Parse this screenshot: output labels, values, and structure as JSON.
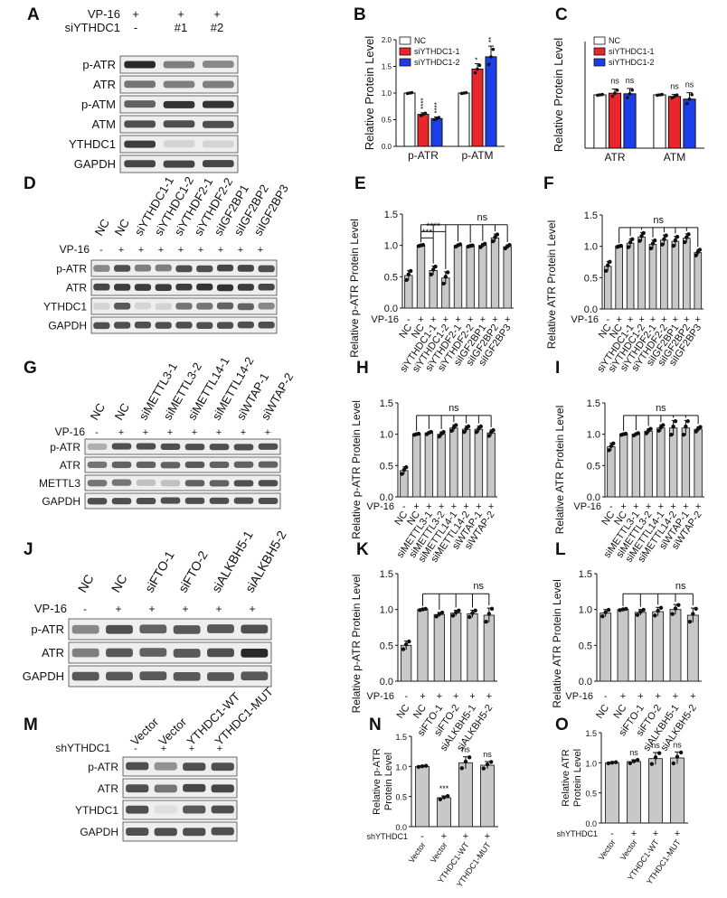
{
  "panels": {
    "A": {
      "letter": "A",
      "header_rows": [
        {
          "label": "VP-16",
          "cols": [
            "+",
            "+",
            "+"
          ]
        },
        {
          "label": "siYTHDC1",
          "cols": [
            "-",
            "#1",
            "#2"
          ]
        }
      ],
      "rows": [
        "p-ATR",
        "ATR",
        "p-ATM",
        "ATM",
        "YTHDC1",
        "GAPDH"
      ]
    },
    "B": {
      "letter": "B",
      "chart_data": {
        "type": "bar",
        "ylabel": "Relative Protein Level",
        "categories": [
          "p-ATR",
          "p-ATM"
        ],
        "ylim": [
          0,
          2.0
        ],
        "yticks": [
          "0.0",
          "0.5",
          "1.0",
          "1.5",
          "2.0"
        ],
        "legend": [
          "NC",
          "siYTHDC1-1",
          "siYTHDC1-2"
        ],
        "legend_position": "top-left",
        "series": [
          {
            "name": "NC",
            "color": "#ffffff",
            "values": [
              1.0,
              1.0
            ],
            "err": [
              0.01,
              0.01
            ],
            "sig": [
              "",
              ""
            ]
          },
          {
            "name": "siYTHDC1-1",
            "color": "#e8262c",
            "values": [
              0.6,
              1.45
            ],
            "err": [
              0.03,
              0.1
            ],
            "sig": [
              "****",
              "*"
            ]
          },
          {
            "name": "siYTHDC1-2",
            "color": "#1c3ee8",
            "values": [
              0.52,
              1.68
            ],
            "err": [
              0.03,
              0.2
            ],
            "sig": [
              "****",
              "**"
            ]
          }
        ]
      }
    },
    "C": {
      "letter": "C",
      "chart_data": {
        "type": "bar",
        "ylabel": "Relative Protein Level",
        "categories": [
          "ATR",
          "ATM"
        ],
        "ylim": [
          0,
          2.0
        ],
        "yticks": [],
        "legend": [
          "NC",
          "siYTHDC1-1",
          "siYTHDC1-2"
        ],
        "legend_position": "top-right",
        "series": [
          {
            "name": "NC",
            "color": "#ffffff",
            "values": [
              1.0,
              1.0
            ],
            "err": [
              0.01,
              0.01
            ],
            "sig": [
              "",
              ""
            ]
          },
          {
            "name": "siYTHDC1-1",
            "color": "#e8262c",
            "values": [
              1.03,
              0.97
            ],
            "err": [
              0.08,
              0.04
            ],
            "sig": [
              "ns",
              "ns"
            ]
          },
          {
            "name": "siYTHDC1-2",
            "color": "#1c3ee8",
            "values": [
              1.02,
              0.92
            ],
            "err": [
              0.1,
              0.12
            ],
            "sig": [
              "ns",
              "ns"
            ]
          }
        ]
      }
    },
    "D": {
      "letter": "D",
      "lanes": [
        "NC",
        "NC",
        "siYTHDC1-1",
        "siYTHDC1-2",
        "siYTHDF2-1",
        "siYTHDF2-2",
        "siIGF2BP1",
        "siIGF2BP2",
        "siIGF2BP3"
      ],
      "vp16_label": "VP-16",
      "vp16": [
        "-",
        "+",
        "+",
        "+",
        "+",
        "+",
        "+",
        "+",
        "+"
      ],
      "rows": [
        "p-ATR",
        "ATR",
        "YTHDC1",
        "GAPDH"
      ]
    },
    "E": {
      "letter": "E",
      "chart_data": {
        "type": "bar",
        "ylabel": "Relative p-ATR Protein Level",
        "ylim": [
          0,
          1.5
        ],
        "yticks": [
          "0.0",
          "0.5",
          "1.0",
          "1.5"
        ],
        "vp16_label": "VP-16",
        "vp16": [
          "-",
          "+",
          "+",
          "+",
          "+",
          "+",
          "+",
          "+",
          "+"
        ],
        "categories": [
          "NC",
          "NC",
          "siYTHDC1-1",
          "siYTHDC1-2",
          "siYTHDF2-1",
          "siYTHDF2-2",
          "siIGF2BP1",
          "siIGF2BP2",
          "siIGF2BP3"
        ],
        "values": [
          0.52,
          1.0,
          0.6,
          0.48,
          1.0,
          0.99,
          1.0,
          1.12,
          0.98
        ],
        "err": [
          0.08,
          0.01,
          0.07,
          0.1,
          0.02,
          0.01,
          0.03,
          0.06,
          0.03
        ],
        "annotations": [
          "***",
          "****",
          "ns"
        ]
      }
    },
    "F": {
      "letter": "F",
      "chart_data": {
        "type": "bar",
        "ylabel": "Relative ATR Protein Level",
        "ylim": [
          0,
          1.5
        ],
        "yticks": [
          "0.0",
          "0.5",
          "1.0",
          "1.5"
        ],
        "vp16_label": "VP-16",
        "vp16": [
          "-",
          "+",
          "+",
          "+",
          "+",
          "+",
          "+",
          "+",
          "+"
        ],
        "categories": [
          "NC",
          "NC",
          "siYTHDC1-1",
          "siYTHDC1-2",
          "siYTHDF2-1",
          "siYTHDF2-2",
          "siIGF2BP1",
          "siIGF2BP2",
          "siIGF2BP3"
        ],
        "values": [
          0.68,
          1.0,
          1.05,
          1.15,
          1.03,
          1.1,
          1.08,
          1.13,
          0.9
        ],
        "err": [
          0.08,
          0.01,
          0.07,
          0.07,
          0.07,
          0.08,
          0.08,
          0.07,
          0.05
        ],
        "annotations": [
          "ns"
        ]
      }
    },
    "G": {
      "letter": "G",
      "lanes": [
        "NC",
        "NC",
        "siMETTL3-1",
        "siMETTL3-2",
        "siMETTL14-1",
        "siMETTL14-2",
        "siWTAP-1",
        "siWTAP-2"
      ],
      "vp16_label": "VP-16",
      "vp16": [
        "-",
        "+",
        "+",
        "+",
        "+",
        "+",
        "+",
        "+"
      ],
      "rows": [
        "p-ATR",
        "ATR",
        "METTL3",
        "GAPDH"
      ]
    },
    "H": {
      "letter": "H",
      "chart_data": {
        "type": "bar",
        "ylabel": "Relative p-ATR Protein Level",
        "ylim": [
          0,
          1.5
        ],
        "yticks": [
          "0.0",
          "0.5",
          "1.0",
          "1.5"
        ],
        "vp16_label": "VP-16",
        "vp16": [
          "-",
          "+",
          "+",
          "+",
          "+",
          "+",
          "+",
          "+"
        ],
        "categories": [
          "NC",
          "NC",
          "siMETTL3-1",
          "siMETTL3-2",
          "siMETTL14-1",
          "siMETTL14-2",
          "siWTAP-1",
          "siWTAP-2"
        ],
        "values": [
          0.42,
          1.0,
          1.02,
          1.0,
          1.1,
          1.08,
          1.08,
          1.02
        ],
        "err": [
          0.06,
          0.01,
          0.02,
          0.04,
          0.05,
          0.05,
          0.05,
          0.05
        ],
        "annotations": [
          "ns"
        ]
      }
    },
    "I": {
      "letter": "I",
      "chart_data": {
        "type": "bar",
        "ylabel": "Relative ATR Protein Level",
        "ylim": [
          0,
          1.5
        ],
        "yticks": [
          "0.0",
          "0.5",
          "1.0",
          "1.5"
        ],
        "vp16_label": "VP-16",
        "vp16": [
          "-",
          "+",
          "+",
          "+",
          "+",
          "+",
          "+",
          "+"
        ],
        "categories": [
          "NC",
          "NC",
          "siMETTL3-1",
          "siMETTL3-2",
          "siMETTL14-1",
          "siMETTL14-2",
          "siWTAP-1",
          "siWTAP-2"
        ],
        "values": [
          0.8,
          1.0,
          1.0,
          1.05,
          1.1,
          1.1,
          1.1,
          1.08
        ],
        "err": [
          0.06,
          0.01,
          0.02,
          0.04,
          0.05,
          0.12,
          0.12,
          0.04
        ],
        "annotations": [
          "ns"
        ]
      }
    },
    "J": {
      "letter": "J",
      "lanes": [
        "NC",
        "NC",
        "siFTO-1",
        "siFTO-2",
        "siALKBH5-1",
        "siALKBH5-2"
      ],
      "vp16_label": "VP-16",
      "vp16": [
        "-",
        "+",
        "+",
        "+",
        "+",
        "+"
      ],
      "rows": [
        "p-ATR",
        "ATR",
        "GAPDH"
      ]
    },
    "K": {
      "letter": "K",
      "chart_data": {
        "type": "bar",
        "ylabel": "Relative p-ATR Protein Level",
        "ylim": [
          0,
          1.5
        ],
        "yticks": [
          "0.0",
          "0.5",
          "1.0",
          "1.5"
        ],
        "vp16_label": "VP-16",
        "vp16": [
          "-",
          "+",
          "+",
          "+",
          "+",
          "+"
        ],
        "categories": [
          "NC",
          "NC",
          "siFTO-1",
          "siFTO-2",
          "siALKBH5-1",
          "siALKBH5-2"
        ],
        "values": [
          0.5,
          1.0,
          0.93,
          0.95,
          0.94,
          0.92
        ],
        "err": [
          0.06,
          0.01,
          0.03,
          0.04,
          0.05,
          0.1
        ],
        "annotations": [
          "ns"
        ]
      }
    },
    "L": {
      "letter": "L",
      "chart_data": {
        "type": "bar",
        "ylabel": "Relative ATR Protein Level",
        "ylim": [
          0,
          1.5
        ],
        "yticks": [
          "0.0",
          "0.5",
          "1.0",
          "1.5"
        ],
        "vp16_label": "VP-16",
        "vp16": [
          "-",
          "+",
          "+",
          "+",
          "+",
          "+"
        ],
        "categories": [
          "NC",
          "NC",
          "siFTO-1",
          "siFTO-2",
          "siALKBH5-1",
          "siALKBH5-2"
        ],
        "values": [
          0.95,
          1.0,
          0.96,
          0.97,
          1.0,
          0.92
        ],
        "err": [
          0.05,
          0.01,
          0.04,
          0.06,
          0.07,
          0.1
        ],
        "annotations": [
          "ns"
        ]
      }
    },
    "M": {
      "letter": "M",
      "lanes": [
        "Vector",
        "Vector",
        "YTHDC1-WT",
        "YTHDC1-MUT"
      ],
      "sh_label": "shYTHDC1",
      "sh": [
        "-",
        "+",
        "+",
        "+"
      ],
      "rows": [
        "p-ATR",
        "ATR",
        "YTHDC1",
        "GAPDH"
      ]
    },
    "N": {
      "letter": "N",
      "chart_data": {
        "type": "bar",
        "ylabel": [
          "Relative p-ATR",
          "Protein Level"
        ],
        "ylim": [
          0,
          1.5
        ],
        "yticks": [
          "0.0",
          "0.5",
          "1.0",
          "1.5"
        ],
        "sh_label": "shYTHDC1",
        "sh": [
          "-",
          "+",
          "+",
          "+"
        ],
        "categories": [
          "Vector",
          "Vector",
          "YTHDC1-WT",
          "YTHDC1-MUT"
        ],
        "values": [
          1.0,
          0.48,
          1.06,
          1.02
        ],
        "err": [
          0.01,
          0.03,
          0.1,
          0.06
        ],
        "sig": [
          "",
          "***",
          "ns",
          "ns"
        ]
      }
    },
    "O": {
      "letter": "O",
      "chart_data": {
        "type": "bar",
        "ylabel": [
          "Relative ATR",
          "Protein Level"
        ],
        "ylim": [
          0,
          1.5
        ],
        "yticks": [
          "0.0",
          "0.5",
          "1.0",
          "1.5"
        ],
        "sh_label": "shYTHDC1",
        "sh": [
          "-",
          "+",
          "+",
          "+"
        ],
        "categories": [
          "Vector",
          "Vector",
          "YTHDC1-WT",
          "YTHDC1-MUT"
        ],
        "values": [
          1.0,
          1.02,
          1.07,
          1.08
        ],
        "err": [
          0.01,
          0.03,
          0.1,
          0.1
        ],
        "sig": [
          "",
          "ns",
          "ns",
          "ns"
        ]
      }
    }
  }
}
